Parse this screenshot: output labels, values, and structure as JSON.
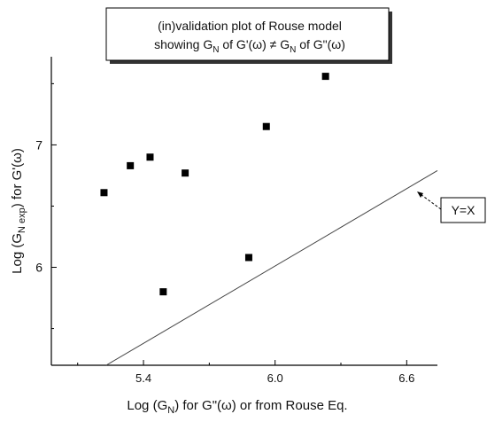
{
  "chart_data": {
    "type": "scatter",
    "title_line1": "(in)validation plot of  Rouse model",
    "title_line2_parts": {
      "a": "showing G",
      "a_sub": "N",
      "b": " of G'(ω)  ≠  G",
      "b_sub": "N",
      "c": " of G\"(ω)"
    },
    "xlabel_parts": {
      "a": "Log (G",
      "a_sub": "N",
      "b": ")  for G\"(ω)  or from Rouse Eq."
    },
    "ylabel_parts": {
      "a": "Log (G",
      "a_sub": "N exp",
      "b": ") for G'(ω)"
    },
    "xlim": [
      4.98,
      6.74
    ],
    "ylim": [
      5.2,
      7.72
    ],
    "x_ticks": [
      5.4,
      6.0,
      6.6
    ],
    "x_tick_labels": [
      "5.4",
      "6.0",
      "6.6"
    ],
    "x_minor_ticks": [
      5.1,
      5.7,
      6.3
    ],
    "y_ticks": [
      6,
      7
    ],
    "y_tick_labels": [
      "6",
      "7"
    ],
    "y_minor_ticks": [
      5.5,
      6.5,
      7.5
    ],
    "series": [
      {
        "marker": "square",
        "color": "#000000",
        "x": [
          5.22,
          5.34,
          5.43,
          5.49,
          5.59,
          5.88,
          5.96,
          6.23
        ],
        "y": [
          6.61,
          6.83,
          6.9,
          5.8,
          6.77,
          6.08,
          7.15,
          7.56
        ]
      }
    ],
    "reference_line": {
      "label": "Y=X",
      "points": [
        [
          5.23,
          5.2
        ],
        [
          6.74,
          6.79
        ]
      ]
    },
    "label_arrow_target": [
      6.65,
      6.7
    ]
  }
}
